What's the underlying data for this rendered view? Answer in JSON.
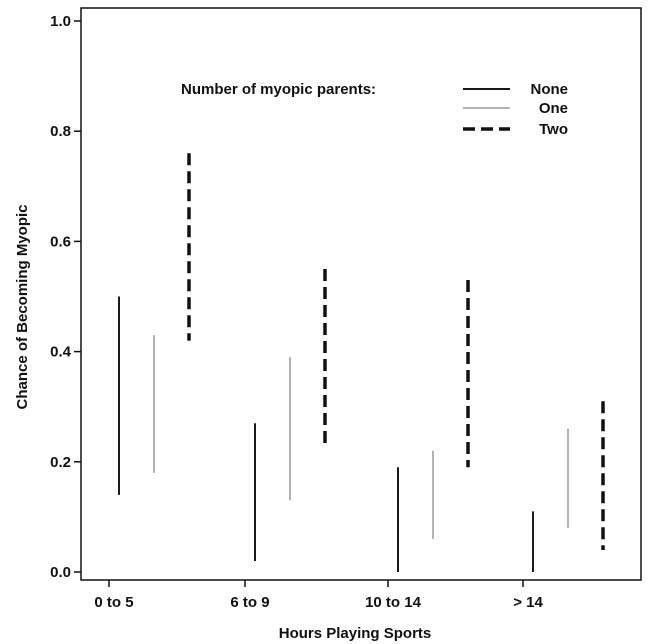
{
  "chart_data": {
    "type": "range",
    "title": "",
    "xlabel": "Hours Playing Sports",
    "ylabel": "Chance of Becoming Myopic",
    "categories": [
      "0 to 5",
      "6 to 9",
      "10 to 14",
      "> 14"
    ],
    "ylim": [
      0.0,
      1.0
    ],
    "yticks": [
      "0.0",
      "0.2",
      "0.4",
      "0.6",
      "0.8",
      "1.0"
    ],
    "legend_title": "Number of myopic parents:",
    "legend_position": "top-right",
    "grid": false,
    "series": [
      {
        "name": "None",
        "style": "solid",
        "color": "#1a1a1a",
        "low": [
          0.14,
          0.02,
          0.0,
          0.0
        ],
        "high": [
          0.5,
          0.27,
          0.19,
          0.11
        ]
      },
      {
        "name": "One",
        "style": "solid",
        "color": "#b3b3b3",
        "low": [
          0.18,
          0.13,
          0.06,
          0.08
        ],
        "high": [
          0.43,
          0.39,
          0.22,
          0.26
        ]
      },
      {
        "name": "Two",
        "style": "dashed",
        "color": "#111111",
        "low": [
          0.42,
          0.23,
          0.19,
          0.04
        ],
        "high": [
          0.76,
          0.55,
          0.53,
          0.31
        ]
      }
    ]
  }
}
